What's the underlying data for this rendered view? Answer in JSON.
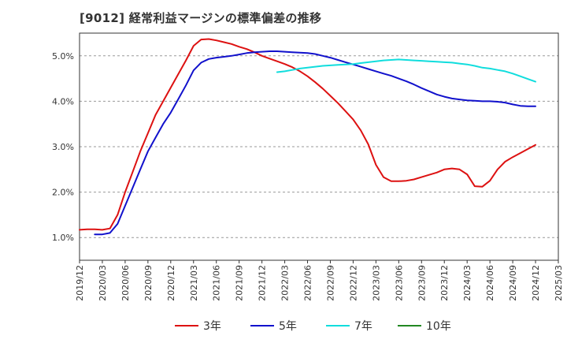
{
  "chart_data": {
    "type": "line",
    "title": "[9012]  経常利益マージンの標準偏差の推移",
    "xlabel": "",
    "ylabel": "",
    "x_ticks": [
      "2019/12",
      "2020/03",
      "2020/06",
      "2020/09",
      "2020/12",
      "2021/03",
      "2021/06",
      "2021/09",
      "2021/12",
      "2022/03",
      "2022/06",
      "2022/09",
      "2022/12",
      "2023/03",
      "2023/06",
      "2023/09",
      "2023/12",
      "2024/03",
      "2024/06",
      "2024/09",
      "2024/12",
      "2025/03"
    ],
    "y_ticks": [
      "1.0%",
      "2.0%",
      "3.0%",
      "4.0%",
      "5.0%"
    ],
    "ylim": [
      0.5,
      5.5
    ],
    "grid": true,
    "legend_position": "bottom",
    "series": [
      {
        "name": "3年",
        "color": "#dd1111",
        "x": [
          "2019/12",
          "2020/01",
          "2020/02",
          "2020/03",
          "2020/04",
          "2020/05",
          "2020/06",
          "2020/07",
          "2020/08",
          "2020/09",
          "2020/10",
          "2020/11",
          "2020/12",
          "2021/01",
          "2021/02",
          "2021/03",
          "2021/04",
          "2021/05",
          "2021/06",
          "2021/07",
          "2021/08",
          "2021/09",
          "2021/10",
          "2021/11",
          "2021/12",
          "2022/01",
          "2022/02",
          "2022/03",
          "2022/04",
          "2022/05",
          "2022/06",
          "2022/07",
          "2022/08",
          "2022/09",
          "2022/10",
          "2022/11",
          "2022/12",
          "2023/01",
          "2023/02",
          "2023/03",
          "2023/04",
          "2023/05",
          "2023/06",
          "2023/07",
          "2023/08",
          "2023/09",
          "2023/10",
          "2023/11",
          "2023/12",
          "2024/01",
          "2024/02",
          "2024/03",
          "2024/04",
          "2024/05",
          "2024/06",
          "2024/07",
          "2024/08",
          "2024/09",
          "2024/10",
          "2024/11",
          "2024/12"
        ],
        "values": [
          1.17,
          1.18,
          1.18,
          1.17,
          1.2,
          1.5,
          2.0,
          2.45,
          2.9,
          3.3,
          3.7,
          4.0,
          4.3,
          4.6,
          4.9,
          5.22,
          5.36,
          5.37,
          5.34,
          5.3,
          5.26,
          5.2,
          5.15,
          5.08,
          5.0,
          4.94,
          4.88,
          4.82,
          4.75,
          4.66,
          4.55,
          4.42,
          4.28,
          4.12,
          3.96,
          3.78,
          3.6,
          3.36,
          3.05,
          2.6,
          2.33,
          2.24,
          2.24,
          2.25,
          2.28,
          2.33,
          2.38,
          2.43,
          2.5,
          2.52,
          2.5,
          2.39,
          2.13,
          2.12,
          2.25,
          2.5,
          2.67,
          2.77,
          2.86,
          2.95,
          3.04
        ]
      },
      {
        "name": "5年",
        "color": "#1111cc",
        "x": [
          "2020/02",
          "2020/03",
          "2020/04",
          "2020/05",
          "2020/06",
          "2020/07",
          "2020/08",
          "2020/09",
          "2020/10",
          "2020/11",
          "2020/12",
          "2021/01",
          "2021/02",
          "2021/03",
          "2021/04",
          "2021/05",
          "2021/06",
          "2021/07",
          "2021/08",
          "2021/09",
          "2021/10",
          "2021/11",
          "2021/12",
          "2022/01",
          "2022/02",
          "2022/03",
          "2022/04",
          "2022/05",
          "2022/06",
          "2022/07",
          "2022/08",
          "2022/09",
          "2022/10",
          "2022/11",
          "2022/12",
          "2023/01",
          "2023/02",
          "2023/03",
          "2023/04",
          "2023/05",
          "2023/06",
          "2023/07",
          "2023/08",
          "2023/09",
          "2023/10",
          "2023/11",
          "2023/12",
          "2024/01",
          "2024/02",
          "2024/03",
          "2024/04",
          "2024/05",
          "2024/06",
          "2024/07",
          "2024/08",
          "2024/09",
          "2024/10",
          "2024/11",
          "2024/12"
        ],
        "values": [
          1.07,
          1.07,
          1.1,
          1.3,
          1.7,
          2.1,
          2.5,
          2.9,
          3.2,
          3.5,
          3.75,
          4.05,
          4.35,
          4.68,
          4.85,
          4.93,
          4.96,
          4.98,
          5.0,
          5.03,
          5.06,
          5.08,
          5.09,
          5.1,
          5.1,
          5.09,
          5.08,
          5.07,
          5.06,
          5.04,
          5.0,
          4.96,
          4.91,
          4.86,
          4.81,
          4.76,
          4.71,
          4.66,
          4.61,
          4.56,
          4.5,
          4.44,
          4.37,
          4.29,
          4.22,
          4.15,
          4.1,
          4.06,
          4.04,
          4.02,
          4.01,
          4.0,
          4.0,
          3.99,
          3.97,
          3.93,
          3.9,
          3.89,
          3.89
        ]
      },
      {
        "name": "7年",
        "color": "#11dddd",
        "x": [
          "2022/02",
          "2022/03",
          "2022/04",
          "2022/05",
          "2022/06",
          "2022/07",
          "2022/08",
          "2022/09",
          "2022/10",
          "2022/11",
          "2022/12",
          "2023/01",
          "2023/02",
          "2023/03",
          "2023/04",
          "2023/05",
          "2023/06",
          "2023/07",
          "2023/08",
          "2023/09",
          "2023/10",
          "2023/11",
          "2023/12",
          "2024/01",
          "2024/02",
          "2024/03",
          "2024/04",
          "2024/05",
          "2024/06",
          "2024/07",
          "2024/08",
          "2024/09",
          "2024/10",
          "2024/11",
          "2024/12"
        ],
        "values": [
          4.64,
          4.66,
          4.69,
          4.72,
          4.74,
          4.76,
          4.78,
          4.79,
          4.8,
          4.81,
          4.82,
          4.84,
          4.86,
          4.88,
          4.9,
          4.91,
          4.92,
          4.91,
          4.9,
          4.89,
          4.88,
          4.87,
          4.86,
          4.85,
          4.83,
          4.81,
          4.78,
          4.74,
          4.72,
          4.69,
          4.66,
          4.61,
          4.55,
          4.49,
          4.43
        ]
      },
      {
        "name": "10年",
        "color": "#228822",
        "x": [],
        "values": []
      }
    ]
  }
}
